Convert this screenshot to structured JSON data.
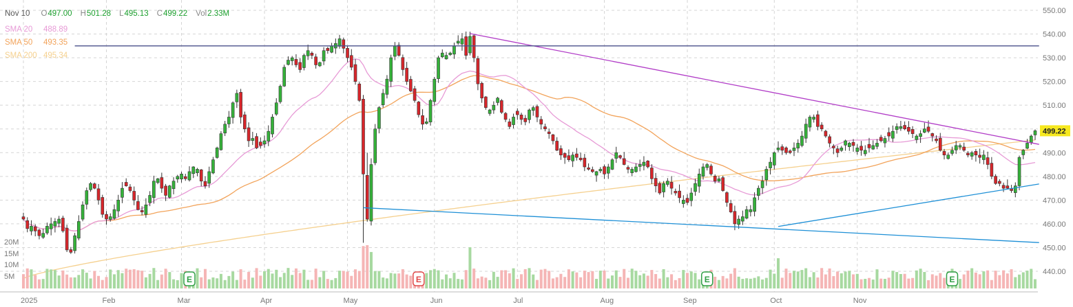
{
  "header": {
    "date": "Nov 10",
    "open_key": "O",
    "open": "497.00",
    "high_key": "H",
    "high": "501.28",
    "low_key": "L",
    "low": "495.13",
    "close_key": "C",
    "close": "499.22",
    "vol_key": "Vol",
    "vol": "2.33M"
  },
  "indicators": [
    {
      "label": "SMA 20",
      "value": "488.89",
      "color": "#e79ad6"
    },
    {
      "label": "SMA 50",
      "value": "493.35",
      "color": "#f2a35a"
    },
    {
      "label": "SMA 200",
      "value": "495.34",
      "color": "#f5d08e"
    }
  ],
  "colors": {
    "up": "#35b23a",
    "down": "#d8262b",
    "vol_up": "#a7d9a0",
    "vol_down": "#f5b5b5",
    "last_price_bg": "#f6e81f",
    "grid": "#d5d5d5"
  },
  "chart_data": {
    "type": "candlestick",
    "y_axis": {
      "min": 440,
      "max": 550,
      "ticks": [
        "550.00",
        "540.00",
        "530.00",
        "520.00",
        "510.00",
        "500.00",
        "490.00",
        "480.00",
        "470.00",
        "460.00",
        "450.00",
        "440.00"
      ]
    },
    "volume_axis": {
      "ticks": [
        "20M",
        "15M",
        "10M",
        "5M"
      ]
    },
    "x_axis": {
      "labels": [
        "2025",
        "Feb",
        "Mar",
        "Apr",
        "May",
        "Jun",
        "Jul",
        "Aug",
        "Sep",
        "Oct",
        "Nov"
      ]
    },
    "last_price": "499.22",
    "earnings_markers": [
      {
        "label": "E",
        "month": "Feb",
        "type": "up"
      },
      {
        "label": "E",
        "month": "May",
        "type": "down"
      },
      {
        "label": "E",
        "month": "Aug",
        "type": "up"
      },
      {
        "label": "E",
        "month": "Nov",
        "type": "up"
      }
    ],
    "closes": [
      462,
      458,
      459,
      457,
      455,
      456,
      459,
      460,
      461,
      462,
      457,
      449,
      448,
      455,
      461,
      468,
      474,
      477,
      475,
      470,
      464,
      462,
      463,
      466,
      470,
      475,
      476,
      474,
      470,
      466,
      465,
      468,
      472,
      478,
      479,
      475,
      472,
      476,
      478,
      480,
      481,
      479,
      482,
      484,
      483,
      478,
      476,
      482,
      487,
      492,
      498,
      502,
      505,
      511,
      515,
      505,
      500,
      495,
      496,
      492,
      493,
      495,
      499,
      505,
      511,
      518,
      526,
      529,
      530,
      527,
      525,
      531,
      533,
      531,
      527,
      528,
      533,
      533,
      535,
      536,
      538,
      534,
      530,
      526,
      520,
      512,
      481,
      462,
      485,
      500,
      509,
      515,
      521,
      530,
      535,
      531,
      525,
      520,
      516,
      512,
      506,
      502,
      503,
      512,
      521,
      530,
      532,
      531,
      532,
      535,
      537,
      538,
      531,
      539,
      530,
      519,
      513,
      509,
      508,
      510,
      513,
      507,
      504,
      501,
      505,
      506,
      504,
      503,
      508,
      509,
      505,
      502,
      500,
      498,
      495,
      491,
      489,
      488,
      487,
      489,
      488,
      487,
      484,
      483,
      482,
      482,
      483,
      481,
      484,
      487,
      490,
      488,
      485,
      483,
      483,
      484,
      485,
      486,
      484,
      479,
      476,
      473,
      477,
      478,
      475,
      473,
      471,
      470,
      469,
      473,
      477,
      481,
      484,
      485,
      481,
      478,
      479,
      474,
      469,
      465,
      460,
      462,
      463,
      466,
      466,
      471,
      475,
      478,
      483,
      486,
      490,
      492,
      491,
      490,
      490,
      492,
      494,
      497,
      502,
      505,
      505,
      501,
      500,
      497,
      494,
      492,
      490,
      492,
      495,
      494,
      493,
      492,
      491,
      491,
      492,
      493,
      494,
      495,
      496,
      497,
      499,
      501,
      501,
      500,
      499,
      498,
      497,
      498,
      500,
      499,
      497,
      495,
      491,
      489,
      489,
      491,
      493,
      493,
      491,
      489,
      490,
      489,
      488,
      489,
      485,
      480,
      477,
      477,
      475,
      475,
      474,
      476,
      488,
      491,
      494,
      497,
      499.22
    ],
    "trendlines": [
      {
        "name": "resistance",
        "color": "#b13cc7",
        "from": {
          "index": 113,
          "price": 540.2
        },
        "to": {
          "index": 257,
          "price": 493.5
        }
      },
      {
        "name": "support-upper",
        "color": "#1d8fd6",
        "from": {
          "index": 191,
          "price": 458.9
        },
        "to": {
          "index": 257,
          "price": 476.8
        }
      },
      {
        "name": "support-lower",
        "color": "#1d8fd6",
        "from": {
          "index": 86,
          "price": 466.8
        },
        "to": {
          "index": 257,
          "price": 452.1
        }
      },
      {
        "name": "horizontal",
        "color": "#4a4f8a",
        "from": {
          "index": 13,
          "price": 535
        },
        "to": {
          "index": 257,
          "price": 535
        }
      }
    ]
  }
}
